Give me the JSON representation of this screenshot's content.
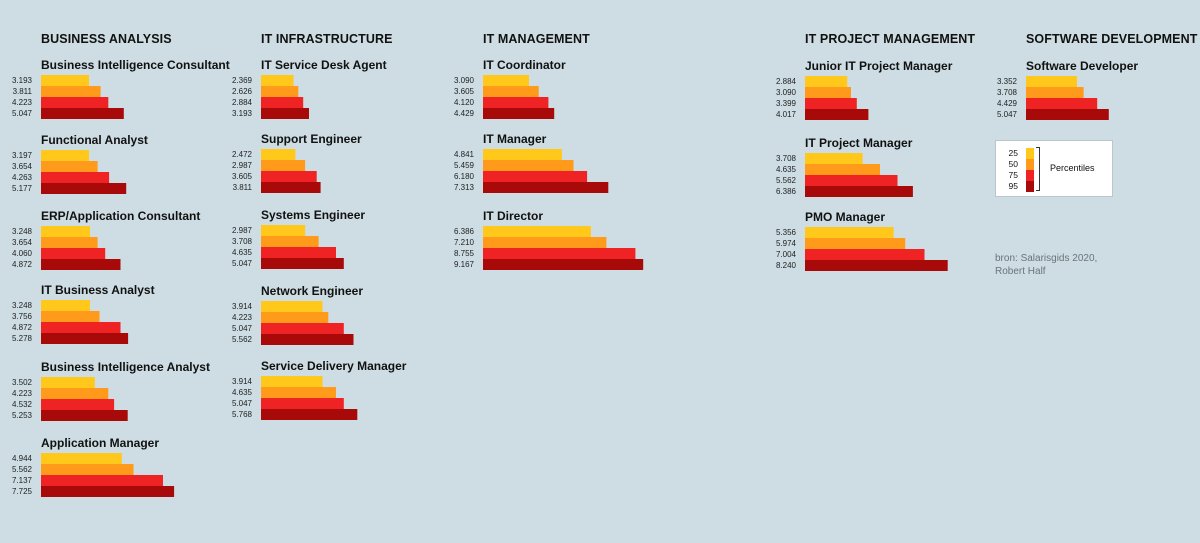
{
  "source": "bron: Salarisgids 2020, Robert Half",
  "legend": {
    "title": "Percentiles",
    "items": [
      {
        "label": "25",
        "color": "#ffc81a"
      },
      {
        "label": "50",
        "color": "#ff9a1a"
      },
      {
        "label": "75",
        "color": "#ef2323"
      },
      {
        "label": "95",
        "color": "#a80a0a"
      }
    ]
  },
  "chart_data": {
    "type": "bar",
    "percentiles": [
      "25",
      "50",
      "75",
      "95"
    ],
    "categories": [
      {
        "title": "BUSINESS ANALYSIS",
        "roles": [
          {
            "title": "Business Intelligence Consultant",
            "values_display": [
              "3.193",
              "3.811",
              "4.223",
              "5.047"
            ],
            "values": [
              3193,
              3811,
              4223,
              5047
            ]
          },
          {
            "title": "Functional Analyst",
            "values_display": [
              "3.197",
              "3.654",
              "4.263",
              "5.177"
            ],
            "values": [
              3197,
              3654,
              4263,
              5177
            ]
          },
          {
            "title": "ERP/Application Consultant",
            "values_display": [
              "3.248",
              "3.654",
              "4.060",
              "4.872"
            ],
            "values": [
              3248,
              3654,
              4060,
              4872
            ]
          },
          {
            "title": "IT Business Analyst",
            "values_display": [
              "3.248",
              "3.756",
              "4.872",
              "5.278"
            ],
            "values": [
              3248,
              3756,
              4872,
              5278
            ]
          },
          {
            "title": "Business Intelligence Analyst",
            "values_display": [
              "3.502",
              "4.223",
              "4.532",
              "5.253"
            ],
            "values": [
              3502,
              4223,
              4532,
              5253
            ]
          },
          {
            "title": "Application Manager",
            "values_display": [
              "4.944",
              "5.562",
              "7.137",
              "7.725"
            ],
            "values": [
              4944,
              5562,
              7137,
              7725
            ]
          }
        ]
      },
      {
        "title": "IT INFRASTRUCTURE",
        "roles": [
          {
            "title": "IT Service Desk Agent",
            "values_display": [
              "2.369",
              "2.626",
              "2.884",
              "3.193"
            ],
            "values": [
              2369,
              2626,
              2884,
              3193
            ]
          },
          {
            "title": "Support Engineer",
            "values_display": [
              "2.472",
              "2.987",
              "3.605",
              "3.811"
            ],
            "values": [
              2472,
              2987,
              3605,
              3811
            ]
          },
          {
            "title": "Systems Engineer",
            "values_display": [
              "2.987",
              "3.708",
              "4.635",
              "5.047"
            ],
            "values": [
              2987,
              3708,
              4635,
              5047
            ]
          },
          {
            "title": "Network Engineer",
            "values_display": [
              "3.914",
              "4.223",
              "5.047",
              "5.562"
            ],
            "values": [
              3914,
              4223,
              5047,
              5562
            ]
          },
          {
            "title": "Service Delivery Manager",
            "values_display": [
              "3.914",
              "4.635",
              "5.047",
              "5.768"
            ],
            "values": [
              3914,
              4635,
              5047,
              5768
            ]
          }
        ]
      },
      {
        "title": "IT MANAGEMENT",
        "roles": [
          {
            "title": "IT Coordinator",
            "values_display": [
              "3.090",
              "3.605",
              "4.120",
              "4.429"
            ],
            "values": [
              3090,
              3605,
              4120,
              4429
            ]
          },
          {
            "title": "IT Manager",
            "values_display": [
              "4.841",
              "5.459",
              "6.180",
              "7.313"
            ],
            "values": [
              4841,
              5459,
              6180,
              7313
            ]
          },
          {
            "title": "IT Director",
            "values_display": [
              "6.386",
              "7.210",
              "8.755",
              "9.167"
            ],
            "values": [
              6386,
              7210,
              8755,
              9167
            ]
          }
        ]
      },
      {
        "title": "IT PROJECT MANAGEMENT",
        "roles": [
          {
            "title": "Junior IT Project Manager",
            "values_display": [
              "2.884",
              "3.090",
              "3.399",
              "4.017"
            ],
            "values": [
              2884,
              3090,
              3399,
              4017
            ]
          },
          {
            "title": "IT Project Manager",
            "values_display": [
              "3.708",
              "4.635",
              "5.562",
              "6.386"
            ],
            "values": [
              3708,
              4635,
              5562,
              6386
            ]
          },
          {
            "title": "PMO Manager",
            "values_display": [
              "5.356",
              "5.974",
              "7.004",
              "8.240"
            ],
            "values": [
              5356,
              5974,
              7004,
              8240
            ]
          }
        ]
      },
      {
        "title": "SOFTWARE DEVELOPMENT",
        "roles": [
          {
            "title": "Software Developer",
            "values_display": [
              "3.352",
              "3.708",
              "4.429",
              "5.047"
            ],
            "values": [
              3352,
              3708,
              4429,
              5047
            ]
          }
        ]
      }
    ]
  }
}
